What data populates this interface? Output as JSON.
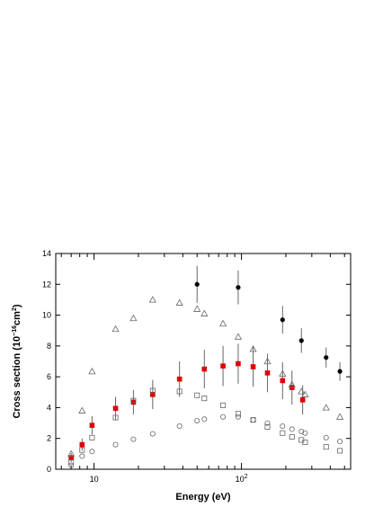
{
  "chart_data": {
    "type": "scatter",
    "xscale": "log",
    "xlim": [
      5.5,
      550
    ],
    "ylim": [
      0,
      14
    ],
    "xlabel": "Energy (eV)",
    "ylabel_main": "Cross section (10",
    "ylabel_exp": "−16",
    "ylabel_unit": "cm",
    "ylabel_unit_exp": "2",
    "ylabel_close": ")",
    "y_ticks": [
      0,
      2,
      4,
      6,
      8,
      10,
      12,
      14
    ],
    "y_tick_labels": [
      "0",
      "2",
      "4",
      "6",
      "8",
      "10",
      "12",
      "14"
    ],
    "x_major_ticks": [
      10,
      100
    ],
    "x_tick_labels": [
      {
        "base": "10",
        "exp": ""
      },
      {
        "base": "10",
        "exp": "2"
      }
    ],
    "x_minor_ticks": [
      6,
      7,
      8,
      9,
      20,
      30,
      40,
      50,
      60,
      70,
      80,
      90,
      200,
      300,
      400,
      500
    ],
    "grid": false,
    "colors": {
      "red": "#e00000",
      "black": "#000000",
      "open": "#666666",
      "errorbar": "#666666"
    },
    "series": [
      {
        "marker": "filled-circle",
        "x": [
          50,
          95,
          190,
          255,
          375,
          465
        ],
        "y": [
          12.0,
          11.8,
          9.7,
          8.35,
          7.25,
          6.35
        ],
        "yerr": [
          1.2,
          1.1,
          0.9,
          0.8,
          0.65,
          0.6
        ]
      },
      {
        "marker": "red-square",
        "x": [
          7,
          8.3,
          9.7,
          14,
          18.5,
          25,
          38,
          56,
          75,
          95,
          120,
          150,
          190,
          220,
          260
        ],
        "y": [
          0.75,
          1.6,
          2.85,
          3.95,
          4.35,
          4.85,
          5.85,
          6.5,
          6.7,
          6.85,
          6.65,
          6.25,
          5.75,
          5.3,
          4.5
        ],
        "yerr": [
          0.3,
          0.4,
          0.6,
          0.75,
          0.8,
          0.95,
          1.15,
          1.25,
          1.3,
          1.3,
          1.3,
          1.25,
          1.2,
          1.1,
          0.95
        ]
      },
      {
        "marker": "open-triangle",
        "x": [
          7,
          8.3,
          9.7,
          14,
          18.5,
          25,
          38,
          50,
          56,
          75,
          95,
          120,
          150,
          190,
          220,
          255,
          270,
          375,
          465
        ],
        "y": [
          1.0,
          3.8,
          6.35,
          9.1,
          9.8,
          11.0,
          10.8,
          10.4,
          10.1,
          9.45,
          8.6,
          7.8,
          7.0,
          6.2,
          5.5,
          5.05,
          4.85,
          4.0,
          3.4
        ]
      },
      {
        "marker": "open-square",
        "x": [
          7,
          8.3,
          9.7,
          14,
          18.5,
          25,
          38,
          50,
          56,
          75,
          95,
          120,
          150,
          190,
          220,
          255,
          270,
          375,
          465
        ],
        "y": [
          0.45,
          1.25,
          2.05,
          3.35,
          4.45,
          5.1,
          5.05,
          4.8,
          4.6,
          4.15,
          3.6,
          3.2,
          2.75,
          2.35,
          2.1,
          1.9,
          1.75,
          1.45,
          1.2
        ]
      },
      {
        "marker": "open-circle",
        "x": [
          7,
          8.3,
          9.7,
          14,
          18.5,
          25,
          38,
          50,
          56,
          75,
          95,
          120,
          150,
          190,
          220,
          255,
          270,
          375,
          465
        ],
        "y": [
          0.25,
          0.85,
          1.15,
          1.6,
          1.95,
          2.3,
          2.8,
          3.15,
          3.25,
          3.4,
          3.4,
          3.2,
          3.0,
          2.8,
          2.6,
          2.45,
          2.35,
          2.05,
          1.8
        ]
      }
    ]
  }
}
